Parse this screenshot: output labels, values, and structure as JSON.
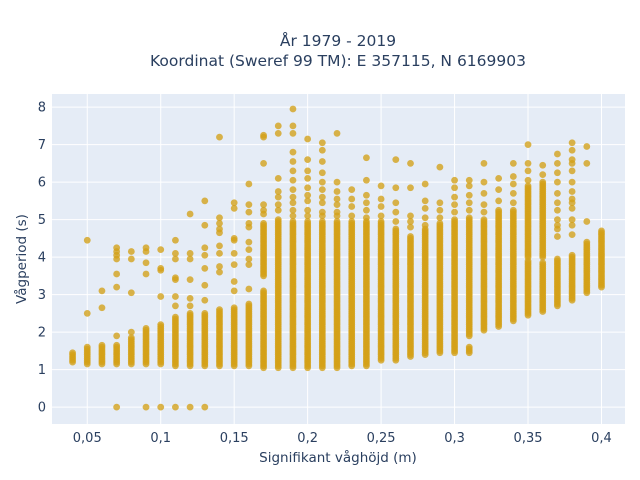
{
  "chart_data": {
    "type": "scatter",
    "title_lines": [
      "År 1979 - 2019",
      "Koordinat (Sweref 99 TM): E 357115, N 6169903"
    ],
    "xlabel": "Signifikant våghöjd (m)",
    "ylabel": "Vågperiod (s)",
    "xlim": [
      0.026,
      0.416
    ],
    "ylim": [
      -0.45,
      8.35
    ],
    "x_ticks": [
      0.05,
      0.1,
      0.15,
      0.2,
      0.25,
      0.3,
      0.35,
      0.4
    ],
    "x_tick_labels": [
      "0,05",
      "0,1",
      "0,15",
      "0,2",
      "0,25",
      "0,3",
      "0,35",
      "0,4"
    ],
    "y_ticks": [
      0,
      1,
      2,
      3,
      4,
      5,
      6,
      7,
      8
    ],
    "y_tick_labels": [
      "0",
      "1",
      "2",
      "3",
      "4",
      "5",
      "6",
      "7",
      "8"
    ],
    "grid": true,
    "marker_color": "#d4a017",
    "plot_background": "#e5ecf6",
    "columns": [
      {
        "x": 0.04,
        "bands": [
          [
            1.2,
            1.45
          ]
        ],
        "points": []
      },
      {
        "x": 0.05,
        "bands": [
          [
            1.15,
            1.6
          ]
        ],
        "points": [
          2.5,
          4.45
        ]
      },
      {
        "x": 0.06,
        "bands": [
          [
            1.15,
            1.65
          ]
        ],
        "points": [
          2.65,
          3.1
        ]
      },
      {
        "x": 0.07,
        "bands": [
          [
            1.15,
            1.65
          ]
        ],
        "points": [
          0,
          1.9,
          3.2,
          3.55,
          3.95,
          4.05,
          4.15,
          4.25
        ]
      },
      {
        "x": 0.08,
        "bands": [
          [
            1.15,
            1.85
          ]
        ],
        "points": [
          2.0,
          3.05,
          3.95,
          4.15
        ]
      },
      {
        "x": 0.09,
        "bands": [
          [
            1.15,
            2.1
          ]
        ],
        "points": [
          0,
          3.55,
          3.85,
          4.15,
          4.25
        ]
      },
      {
        "x": 0.1,
        "bands": [
          [
            1.15,
            2.2
          ]
        ],
        "points": [
          0,
          2.95,
          3.65,
          3.7,
          4.2
        ]
      },
      {
        "x": 0.11,
        "bands": [
          [
            1.1,
            2.4
          ]
        ],
        "points": [
          0,
          2.7,
          2.95,
          3.4,
          3.45,
          3.95,
          4.1,
          4.45
        ]
      },
      {
        "x": 0.12,
        "bands": [
          [
            1.1,
            2.5
          ]
        ],
        "points": [
          0,
          2.7,
          2.9,
          3.4,
          3.95,
          4.1,
          5.15
        ]
      },
      {
        "x": 0.13,
        "bands": [
          [
            1.1,
            2.5
          ]
        ],
        "points": [
          0,
          2.85,
          3.25,
          3.7,
          4.05,
          4.25,
          4.85,
          5.5
        ]
      },
      {
        "x": 0.14,
        "bands": [
          [
            1.1,
            2.6
          ]
        ],
        "points": [
          3.6,
          3.75,
          4.1,
          4.3,
          4.65,
          4.75,
          4.9,
          5.05,
          7.2
        ]
      },
      {
        "x": 0.15,
        "bands": [
          [
            1.1,
            2.65
          ]
        ],
        "points": [
          3.1,
          3.35,
          3.8,
          4.1,
          4.45,
          4.5,
          5.3,
          5.45
        ]
      },
      {
        "x": 0.16,
        "bands": [
          [
            1.1,
            2.75
          ]
        ],
        "points": [
          3.15,
          3.8,
          3.95,
          4.2,
          4.4,
          4.8,
          4.9,
          5.2,
          5.4,
          5.95
        ]
      },
      {
        "x": 0.17,
        "bands": [
          [
            1.05,
            3.1
          ],
          [
            3.5,
            4.9
          ]
        ],
        "points": [
          5.15,
          5.25,
          5.4,
          6.5,
          7.2,
          7.25
        ]
      },
      {
        "x": 0.18,
        "bands": [
          [
            1.05,
            3.7
          ],
          [
            3.75,
            5.0
          ]
        ],
        "points": [
          5.25,
          5.4,
          5.6,
          5.75,
          6.1,
          7.3,
          7.5
        ]
      },
      {
        "x": 0.19,
        "bands": [
          [
            1.05,
            4.95
          ]
        ],
        "points": [
          5.1,
          5.25,
          5.45,
          5.6,
          5.8,
          6.05,
          6.3,
          6.55,
          6.8,
          7.3,
          7.5,
          7.95
        ]
      },
      {
        "x": 0.2,
        "bands": [
          [
            1.05,
            4.95
          ]
        ],
        "points": [
          5.1,
          5.25,
          5.5,
          5.65,
          5.85,
          6.1,
          6.3,
          6.6,
          7.15
        ]
      },
      {
        "x": 0.21,
        "bands": [
          [
            1.05,
            4.95
          ]
        ],
        "points": [
          5.1,
          5.2,
          5.45,
          5.6,
          5.8,
          6.0,
          6.25,
          6.55,
          6.85,
          7.05
        ]
      },
      {
        "x": 0.22,
        "bands": [
          [
            1.05,
            4.95
          ]
        ],
        "points": [
          5.1,
          5.2,
          5.4,
          5.55,
          5.75,
          6.0,
          7.3
        ]
      },
      {
        "x": 0.23,
        "bands": [
          [
            1.1,
            4.95
          ]
        ],
        "points": [
          5.1,
          5.35,
          5.55,
          5.8
        ]
      },
      {
        "x": 0.24,
        "bands": [
          [
            1.1,
            4.95
          ]
        ],
        "points": [
          5.05,
          5.25,
          5.45,
          5.65,
          6.05,
          6.65
        ]
      },
      {
        "x": 0.25,
        "bands": [
          [
            1.25,
            4.95
          ]
        ],
        "points": [
          5.1,
          5.35,
          5.55,
          5.9
        ]
      },
      {
        "x": 0.26,
        "bands": [
          [
            1.25,
            4.75
          ]
        ],
        "points": [
          4.95,
          5.2,
          5.45,
          5.85,
          6.6
        ]
      },
      {
        "x": 0.27,
        "bands": [
          [
            1.35,
            4.55
          ]
        ],
        "points": [
          4.8,
          4.95,
          5.1,
          5.85,
          6.5
        ]
      },
      {
        "x": 0.28,
        "bands": [
          [
            1.4,
            4.75
          ]
        ],
        "points": [
          4.85,
          5.05,
          5.3,
          5.5,
          5.95
        ]
      },
      {
        "x": 0.29,
        "bands": [
          [
            1.45,
            4.9
          ]
        ],
        "points": [
          5.05,
          5.25,
          5.45,
          6.4
        ]
      },
      {
        "x": 0.3,
        "bands": [
          [
            1.45,
            5.0
          ]
        ],
        "points": [
          5.2,
          5.4,
          5.6,
          5.85,
          6.05
        ]
      },
      {
        "x": 0.31,
        "bands": [
          [
            1.45,
            1.6
          ],
          [
            1.9,
            5.05
          ]
        ],
        "points": [
          5.25,
          5.45,
          5.65,
          5.9,
          6.05
        ]
      },
      {
        "x": 0.32,
        "bands": [
          [
            2.05,
            5.0
          ]
        ],
        "points": [
          5.2,
          5.4,
          5.7,
          6.0,
          6.5
        ]
      },
      {
        "x": 0.33,
        "bands": [
          [
            2.15,
            5.25
          ]
        ],
        "points": [
          5.5,
          5.8,
          6.1
        ]
      },
      {
        "x": 0.34,
        "bands": [
          [
            2.3,
            5.25
          ]
        ],
        "points": [
          5.45,
          5.7,
          5.95,
          6.15,
          6.5
        ]
      },
      {
        "x": 0.35,
        "bands": [
          [
            2.45,
            3.9
          ],
          [
            4.0,
            5.9
          ]
        ],
        "points": [
          6.05,
          6.3,
          6.5,
          7.0
        ]
      },
      {
        "x": 0.36,
        "bands": [
          [
            2.55,
            3.85
          ],
          [
            4.0,
            6.0
          ]
        ],
        "points": [
          6.2,
          6.45
        ]
      },
      {
        "x": 0.37,
        "bands": [
          [
            2.7,
            3.95
          ]
        ],
        "points": [
          4.55,
          4.75,
          4.85,
          5.0,
          5.25,
          5.45,
          5.7,
          6.0,
          6.25,
          6.5,
          6.75
        ]
      },
      {
        "x": 0.38,
        "bands": [
          [
            2.85,
            4.05
          ]
        ],
        "points": [
          4.6,
          4.85,
          5.0,
          5.3,
          5.45,
          5.55,
          5.75,
          6.0,
          6.3,
          6.5,
          6.6,
          6.85,
          7.05
        ]
      },
      {
        "x": 0.39,
        "bands": [
          [
            3.05,
            4.4
          ]
        ],
        "points": [
          4.95,
          6.5,
          6.95
        ]
      },
      {
        "x": 0.4,
        "bands": [
          [
            3.2,
            4.7
          ]
        ],
        "points": []
      }
    ]
  }
}
